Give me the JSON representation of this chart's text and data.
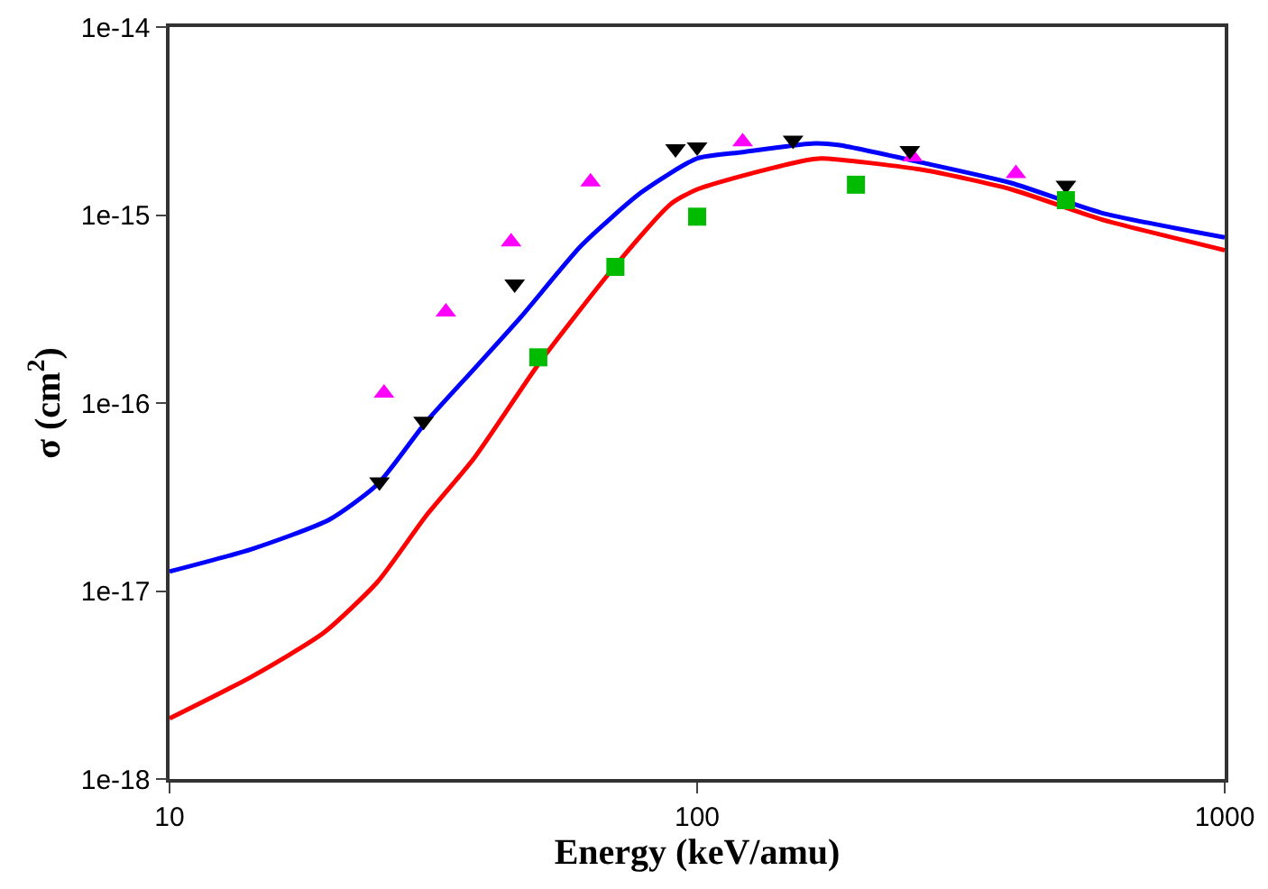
{
  "chart_data": {
    "type": "line",
    "xlabel": "Energy (keV/amu)",
    "ylabel": "σ (cm$^{2}$)",
    "log": "xy",
    "xlim": [
      10,
      1000
    ],
    "xticks": [
      10,
      100,
      1000
    ],
    "ylim": [
      1e-18,
      1e-14
    ],
    "yticks": [
      {
        "value": 1e-18,
        "label": "1e-18"
      },
      {
        "value": 1e-17,
        "label": "1e-17"
      },
      {
        "value": 1e-16,
        "label": "1e-16"
      },
      {
        "value": 1e-15,
        "label": "1e-15"
      },
      {
        "value": 1e-14,
        "label": "1e-14"
      }
    ],
    "series": [
      {
        "color": "#0000ff",
        "marker": "none",
        "line_style": "solid",
        "x": [
          10,
          14.3,
          20.1,
          24.8,
          30.6,
          37.8,
          46.5,
          60.4,
          78.4,
          100,
          122,
          165,
          185,
          267,
          394,
          582,
          1000
        ],
        "values": [
          1.27e-17,
          1.67e-17,
          2.4e-17,
          3.7e-17,
          7.9e-17,
          1.52e-16,
          2.9e-16,
          6.9e-16,
          1.32e-15,
          2e-15,
          2.16e-15,
          2.4e-15,
          2.36e-15,
          1.9e-15,
          1.48e-15,
          1.03e-15,
          7.6e-16
        ]
      },
      {
        "color": "#ff0000",
        "marker": "none",
        "line_style": "solid",
        "x": [
          10,
          14.3,
          19.6,
          24.8,
          30.6,
          37.8,
          50.2,
          68.9,
          89.3,
          100,
          122,
          157,
          172,
          267,
          394,
          582,
          1000
        ],
        "values": [
          2.1e-18,
          3.5e-18,
          6e-18,
          1.12e-17,
          2.5e-17,
          5.1e-17,
          1.63e-16,
          5.1e-16,
          1.15e-15,
          1.37e-15,
          1.62e-15,
          1.93e-15,
          2e-15,
          1.74e-15,
          1.37e-15,
          9.5e-16,
          6.5e-16
        ]
      },
      {
        "type": "scatter",
        "color": "#ff00ff",
        "marker": "triangle",
        "x": [
          25.5,
          33.4,
          44.4,
          62.8,
          122,
          256,
          402
        ],
        "values": [
          1.13e-16,
          3.05e-16,
          7.2e-16,
          1.5e-15,
          2.45e-15,
          2.04e-15,
          1.66e-15
        ]
      },
      {
        "type": "scatter",
        "color": "#000000",
        "marker": "triangle-down",
        "x": [
          25,
          30.3,
          45.1,
          91,
          100,
          152,
          253,
          500
        ],
        "values": [
          3.8e-17,
          8e-17,
          4.3e-16,
          2.25e-15,
          2.3e-15,
          2.5e-15,
          2.2e-15,
          1.44e-15
        ]
      },
      {
        "type": "scatter",
        "color": "#00bb00",
        "marker": "square",
        "x": [
          50,
          70,
          100,
          200,
          500
        ],
        "values": [
          1.75e-16,
          5.3e-16,
          9.8e-16,
          1.45e-15,
          1.2e-15
        ]
      }
    ]
  }
}
